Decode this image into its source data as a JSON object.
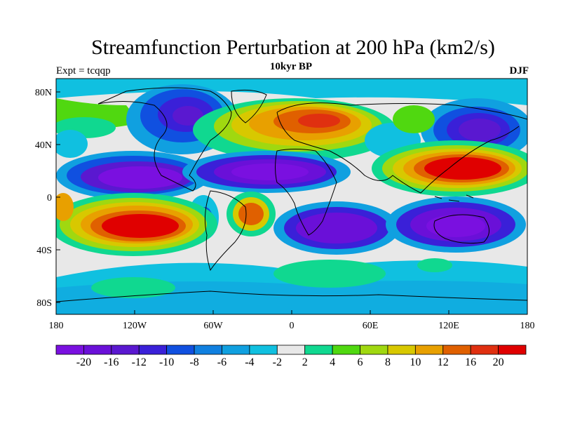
{
  "title": "Streamfunction Perturbation at 200 hPa (km2/s)",
  "left_label": "Expt = tcqqp",
  "center_label": "10kyr BP",
  "right_label": "DJF",
  "axes": {
    "lat_labels": [
      "80N",
      "40N",
      "0",
      "40S",
      "80S"
    ],
    "lon_labels": [
      "180",
      "120W",
      "60W",
      "0",
      "60E",
      "120E",
      "180"
    ]
  },
  "colorbar": {
    "colors": [
      "#7a10e0",
      "#6a10d8",
      "#5a18d0",
      "#3a20d8",
      "#1050e0",
      "#1080e0",
      "#10a0e0",
      "#10c0e0",
      "#e8e8e8",
      "#10d890",
      "#50d810",
      "#a0d810",
      "#d8c800",
      "#e8a000",
      "#e06000",
      "#e03010",
      "#e00000"
    ],
    "labels": [
      "-20",
      "-16",
      "-12",
      "-10",
      "-8",
      "-6",
      "-4",
      "-2",
      "2",
      "4",
      "6",
      "8",
      "10",
      "12",
      "16",
      "20"
    ]
  }
}
